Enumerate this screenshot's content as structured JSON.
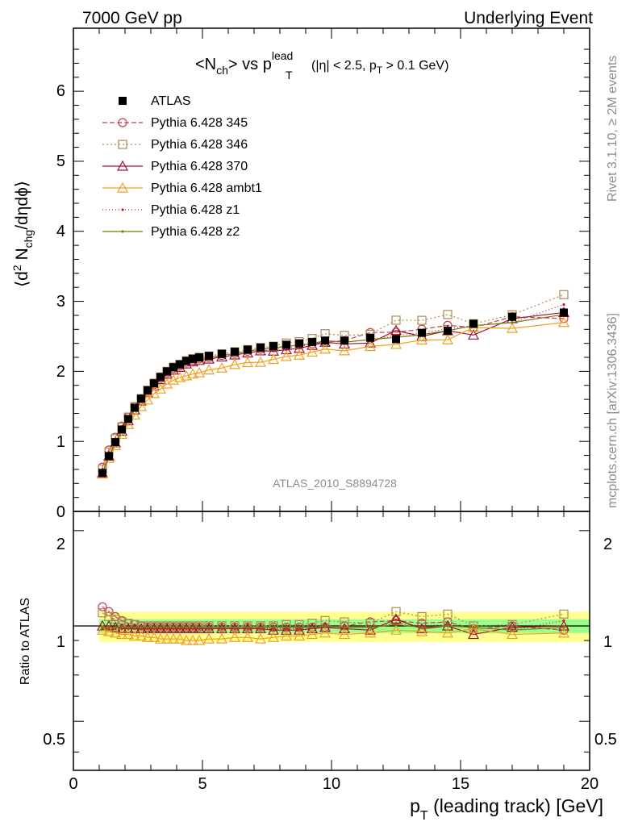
{
  "header": {
    "left": "7000 GeV pp",
    "right": "Underlying Event"
  },
  "side_labels": {
    "rivet": "Rivet 3.1.10, ≥ 2M events",
    "mcplots": "mcplots.cern.ch [arXiv:1306.3436]"
  },
  "watermark": "ATLAS_2010_S8894728",
  "chart_data": {
    "type": "line",
    "title": {
      "main": "<N",
      "main_sub": "ch",
      "mid": "> vs p",
      "mid_sup": "lead",
      "mid_sub": "T",
      "cut_a": "(|η| < 2.5, p",
      "cut_sub": "T",
      "cut_b": " > 0.1 GeV)"
    },
    "xlabel": {
      "main": "p",
      "sub": "T",
      "rest": " (leading track) [GeV]"
    },
    "ylabel_upper": {
      "a": "⟨d",
      "sup": "2",
      "b": " N",
      "sub": "chg",
      "c": "/dηdϕ⟩"
    },
    "ylabel_lower": "Ratio to ATLAS",
    "xlim": [
      0,
      20
    ],
    "ylim_upper": [
      0,
      6.9
    ],
    "ylim_lower": [
      0.35,
      2.3
    ],
    "x_ticks": [
      "0",
      "5",
      "10",
      "15",
      "20"
    ],
    "y_ticks_upper": [
      "0",
      "1",
      "2",
      "3",
      "4",
      "5",
      "6"
    ],
    "y_ticks_lower": [
      "0.5",
      "1",
      "2"
    ],
    "x": [
      1.125,
      1.375,
      1.625,
      1.875,
      2.125,
      2.375,
      2.625,
      2.875,
      3.125,
      3.375,
      3.625,
      3.875,
      4.125,
      4.375,
      4.625,
      4.875,
      5.25,
      5.75,
      6.25,
      6.75,
      7.25,
      7.75,
      8.25,
      8.75,
      9.25,
      9.75,
      10.5,
      11.5,
      12.5,
      13.5,
      14.5,
      15.5,
      17.0,
      19.0
    ],
    "atlas": [
      0.55,
      0.79,
      0.99,
      1.17,
      1.32,
      1.48,
      1.61,
      1.73,
      1.83,
      1.92,
      2.0,
      2.06,
      2.1,
      2.15,
      2.18,
      2.2,
      2.22,
      2.25,
      2.28,
      2.31,
      2.34,
      2.36,
      2.38,
      2.4,
      2.42,
      2.44,
      2.44,
      2.48,
      2.46,
      2.55,
      2.58,
      2.68,
      2.78,
      2.84
    ],
    "ratio_band_inner": [
      0.95,
      1.05
    ],
    "ratio_band_outer": [
      0.89,
      1.11
    ],
    "series": [
      {
        "name": "ATLAS",
        "style": "data",
        "color": "#000000",
        "ratio": [
          1,
          1,
          1,
          1,
          1,
          1,
          1,
          1,
          1,
          1,
          1,
          1,
          1,
          1,
          1,
          1,
          1,
          1,
          1,
          1,
          1,
          1,
          1,
          1,
          1,
          1,
          1,
          1,
          1,
          1,
          1,
          1,
          1,
          1
        ]
      },
      {
        "name": "Pythia 6.428 345",
        "style": "circle",
        "dash": "6,3",
        "color": "#c04050",
        "ratio": [
          1.15,
          1.11,
          1.07,
          1.04,
          1.02,
          1.01,
          1.0,
          0.99,
          0.99,
          0.99,
          0.99,
          0.99,
          0.99,
          0.99,
          0.99,
          0.99,
          0.99,
          0.99,
          0.99,
          0.99,
          0.99,
          0.99,
          0.99,
          0.99,
          0.99,
          0.99,
          1.0,
          1.03,
          1.04,
          1.02,
          1.03,
          0.98,
          1.0,
          0.97
        ]
      },
      {
        "name": "Pythia 6.428 346",
        "style": "square",
        "dash": "2,3",
        "color": "#b08850",
        "ratio": [
          1.1,
          1.07,
          1.05,
          1.03,
          1.02,
          1.01,
          1.0,
          1.0,
          1.0,
          1.0,
          1.0,
          1.0,
          1.0,
          1.0,
          1.0,
          1.0,
          1.0,
          1.0,
          1.0,
          1.0,
          1.0,
          1.0,
          1.01,
          1.01,
          1.02,
          1.04,
          1.03,
          1.02,
          1.11,
          1.07,
          1.09,
          1.0,
          1.01,
          1.09
        ]
      },
      {
        "name": "Pythia 6.428 370",
        "style": "triangle",
        "dash": "",
        "color": "#a01030",
        "ratio": [
          1.0,
          1.0,
          0.99,
          0.98,
          0.98,
          0.98,
          0.98,
          0.98,
          0.98,
          0.98,
          0.98,
          0.98,
          0.98,
          0.98,
          0.98,
          0.98,
          0.98,
          0.98,
          0.98,
          0.98,
          0.98,
          0.97,
          0.97,
          0.97,
          0.98,
          0.99,
          0.98,
          0.97,
          1.05,
          0.98,
          1.0,
          0.94,
          0.99,
          1.0
        ]
      },
      {
        "name": "Pythia 6.428 ambt1",
        "style": "triangle",
        "dash": "",
        "color": "#f0a020",
        "ratio": [
          0.97,
          0.96,
          0.95,
          0.94,
          0.94,
          0.93,
          0.93,
          0.92,
          0.92,
          0.91,
          0.91,
          0.91,
          0.91,
          0.9,
          0.9,
          0.9,
          0.91,
          0.91,
          0.92,
          0.92,
          0.91,
          0.92,
          0.93,
          0.93,
          0.94,
          0.95,
          0.94,
          0.95,
          0.97,
          0.96,
          0.95,
          0.98,
          0.94,
          0.95
        ]
      },
      {
        "name": "Pythia 6.428 z1",
        "style": "dot",
        "dash": "1,3",
        "color": "#c02020",
        "ratio": [
          0.98,
          0.98,
          0.98,
          0.98,
          0.98,
          0.98,
          0.98,
          0.98,
          0.98,
          0.98,
          0.98,
          0.98,
          0.98,
          0.98,
          0.98,
          0.98,
          0.98,
          0.98,
          0.98,
          0.98,
          0.98,
          0.98,
          0.98,
          0.98,
          0.99,
          1.0,
          0.99,
          0.99,
          1.02,
          1.0,
          1.01,
          0.99,
          0.97,
          1.04
        ]
      },
      {
        "name": "Pythia 6.428 z2",
        "style": "dot",
        "dash": "",
        "color": "#7a7a10",
        "ratio": [
          0.99,
          0.99,
          0.99,
          0.99,
          0.99,
          0.99,
          0.99,
          0.99,
          0.99,
          0.99,
          0.99,
          0.99,
          0.99,
          0.99,
          0.99,
          0.99,
          0.99,
          0.99,
          0.99,
          0.99,
          0.99,
          0.99,
          0.99,
          0.99,
          0.99,
          1.0,
          0.99,
          0.99,
          1.01,
          0.99,
          1.0,
          0.99,
          0.97,
          0.99
        ]
      }
    ]
  }
}
